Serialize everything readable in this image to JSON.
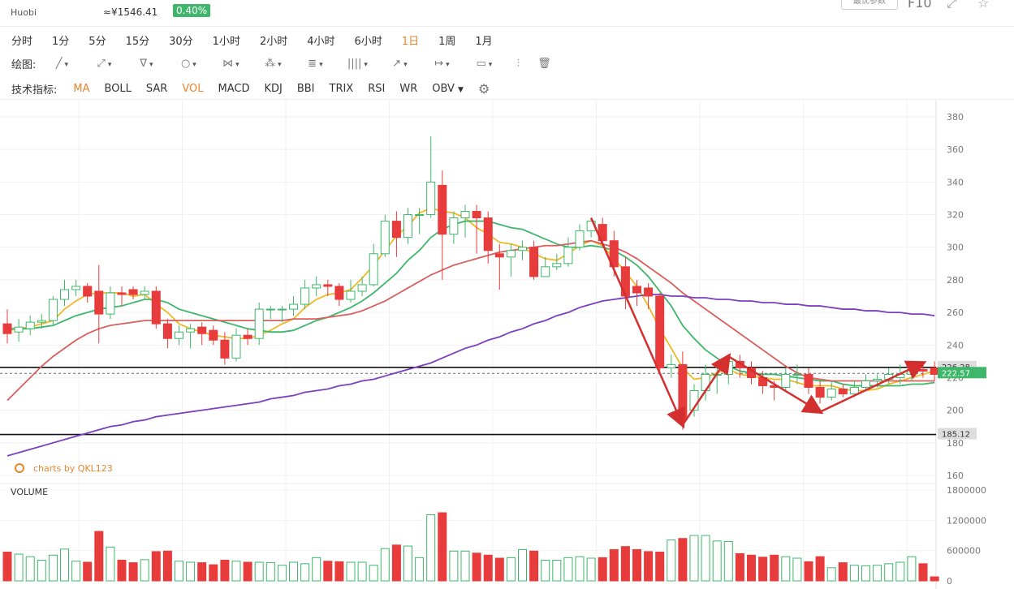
{
  "header": {
    "exchange": "Huobi",
    "price_cny": "≈¥1546.41",
    "change_pct": "0.40%",
    "config_button": "最优参数",
    "f10": "F10",
    "icons": [
      "fullscreen-icon",
      "star-icon"
    ]
  },
  "timeframes": [
    "分时",
    "1分",
    "5分",
    "15分",
    "30分",
    "1小时",
    "2小时",
    "4小时",
    "6小时",
    "1日",
    "1周",
    "1月"
  ],
  "active_timeframe": "1日",
  "drawing": {
    "label": "绘图:",
    "tools": [
      {
        "name": "line-tool-icon",
        "glyph": "╱"
      },
      {
        "name": "ray-tool-icon",
        "glyph": "⤢"
      },
      {
        "name": "channel-tool-icon",
        "glyph": "∇"
      },
      {
        "name": "circle-tool-icon",
        "glyph": "○"
      },
      {
        "name": "wave-tool-icon",
        "glyph": "⋈"
      },
      {
        "name": "pattern-tool-icon",
        "glyph": "⁂"
      },
      {
        "name": "fib-tool-icon",
        "glyph": "≣"
      },
      {
        "name": "gann-tool-icon",
        "glyph": "||||"
      },
      {
        "name": "arrow-tool-icon",
        "glyph": "↗"
      },
      {
        "name": "measure-tool-icon",
        "glyph": "↦"
      },
      {
        "name": "text-tool-icon",
        "glyph": "▭"
      }
    ],
    "end_icons": [
      {
        "name": "indicator-tool-icon",
        "glyph": "⫶"
      },
      {
        "name": "trash-icon",
        "glyph": "🗑"
      }
    ]
  },
  "indicators": {
    "label": "技术指标:",
    "items": [
      "MA",
      "BOLL",
      "SAR",
      "VOL",
      "MACD",
      "KDJ",
      "BBI",
      "TRIX",
      "RSI",
      "WR",
      "OBV"
    ],
    "active": [
      "MA",
      "VOL"
    ]
  },
  "chart_data": {
    "type": "candlestick",
    "watermark": "charts by QKL123",
    "volume_label": "VOLUME",
    "price_axis": {
      "min": 160,
      "max": 380,
      "ticks": [
        160,
        180,
        200,
        220,
        240,
        260,
        280,
        300,
        320,
        340,
        360,
        380
      ]
    },
    "volume_axis": {
      "min": 0,
      "max": 1800000,
      "ticks": [
        0,
        600000,
        1200000,
        1800000
      ]
    },
    "horizontal_lines": [
      226.28,
      185.12
    ],
    "price_badges": [
      {
        "value": "226.28",
        "color": "#dddddd"
      },
      {
        "value": "185.12",
        "color": "#dddddd"
      },
      {
        "value": "222.57",
        "color": "#3fb76b"
      }
    ],
    "candles": [
      [
        253,
        247,
        262,
        241,
        0.57
      ],
      [
        248,
        251,
        256,
        242,
        0.53
      ],
      [
        250,
        254,
        258,
        246,
        0.48
      ],
      [
        254,
        255,
        259,
        250,
        0.41
      ],
      [
        255,
        268,
        270,
        252,
        0.51
      ],
      [
        268,
        274,
        280,
        264,
        0.63
      ],
      [
        274,
        276,
        280,
        270,
        0.39
      ],
      [
        276,
        270,
        278,
        266,
        0.37
      ],
      [
        273,
        259,
        289,
        241,
        0.98
      ],
      [
        259,
        272,
        276,
        256,
        0.67
      ],
      [
        272,
        271,
        276,
        264,
        0.41
      ],
      [
        274,
        271,
        276,
        268,
        0.36
      ],
      [
        271,
        273,
        276,
        268,
        0.42
      ],
      [
        273,
        253,
        276,
        250,
        0.58
      ],
      [
        253,
        244,
        256,
        238,
        0.59
      ],
      [
        244,
        248,
        252,
        240,
        0.39
      ],
      [
        248,
        250,
        253,
        238,
        0.37
      ],
      [
        251,
        247,
        254,
        240,
        0.36
      ],
      [
        249,
        243,
        252,
        240,
        0.32
      ],
      [
        243,
        232,
        248,
        228,
        0.41
      ],
      [
        232,
        246,
        250,
        230,
        0.39
      ],
      [
        246,
        244,
        250,
        240,
        0.37
      ],
      [
        244,
        262,
        266,
        240,
        0.37
      ],
      [
        262,
        262,
        264,
        256,
        0.36
      ],
      [
        262,
        262,
        264,
        254,
        0.31
      ],
      [
        262,
        265,
        270,
        258,
        0.37
      ],
      [
        265,
        275,
        280,
        262,
        0.34
      ],
      [
        275,
        277,
        282,
        270,
        0.46
      ],
      [
        277,
        276,
        280,
        270,
        0.39
      ],
      [
        276,
        268,
        278,
        264,
        0.38
      ],
      [
        268,
        273,
        280,
        266,
        0.37
      ],
      [
        273,
        277,
        282,
        270,
        0.37
      ],
      [
        277,
        296,
        302,
        276,
        0.31
      ],
      [
        296,
        316,
        320,
        294,
        0.64
      ],
      [
        316,
        306,
        322,
        294,
        0.71
      ],
      [
        306,
        320,
        324,
        302,
        0.69
      ],
      [
        320,
        320,
        324,
        308,
        0.46
      ],
      [
        320,
        340,
        368,
        318,
        1.31
      ],
      [
        338,
        308,
        347,
        280,
        1.35
      ],
      [
        308,
        318,
        322,
        302,
        0.59
      ],
      [
        318,
        322,
        326,
        306,
        0.59
      ],
      [
        322,
        318,
        326,
        296,
        0.55
      ],
      [
        318,
        298,
        322,
        290,
        0.51
      ],
      [
        296,
        294,
        302,
        274,
        0.45
      ],
      [
        294,
        298,
        302,
        282,
        0.46
      ],
      [
        298,
        300,
        304,
        292,
        0.62
      ],
      [
        300,
        282,
        304,
        280,
        0.59
      ],
      [
        282,
        288,
        294,
        282,
        0.41
      ],
      [
        288,
        290,
        296,
        286,
        0.41
      ],
      [
        290,
        300,
        306,
        288,
        0.46
      ],
      [
        300,
        310,
        314,
        298,
        0.48
      ],
      [
        310,
        316,
        318,
        306,
        0.45
      ],
      [
        314,
        304,
        318,
        302,
        0.46
      ],
      [
        304,
        288,
        310,
        282,
        0.62
      ],
      [
        288,
        270,
        294,
        262,
        0.68
      ],
      [
        276,
        272,
        280,
        264,
        0.62
      ],
      [
        275,
        270,
        278,
        262,
        0.58
      ],
      [
        270,
        226,
        272,
        224,
        0.57
      ],
      [
        226,
        228,
        234,
        220,
        0.81
      ],
      [
        228,
        194,
        236,
        188,
        0.84
      ],
      [
        200,
        212,
        216,
        196,
        0.9
      ],
      [
        212,
        222,
        228,
        206,
        0.9
      ],
      [
        222,
        222,
        228,
        210,
        0.79
      ],
      [
        222,
        230,
        232,
        216,
        0.78
      ],
      [
        230,
        226,
        234,
        220,
        0.54
      ],
      [
        226,
        220,
        230,
        216,
        0.51
      ],
      [
        220,
        215,
        224,
        210,
        0.47
      ],
      [
        215,
        214,
        218,
        206,
        0.51
      ],
      [
        214,
        222,
        226,
        212,
        0.48
      ],
      [
        222,
        222,
        228,
        216,
        0.45
      ],
      [
        222,
        214,
        226,
        210,
        0.38
      ],
      [
        214,
        208,
        218,
        204,
        0.48
      ],
      [
        208,
        213,
        218,
        206,
        0.26
      ],
      [
        213,
        210,
        216,
        208,
        0.36
      ],
      [
        210,
        214,
        218,
        208,
        0.31
      ],
      [
        214,
        218,
        222,
        212,
        0.3
      ],
      [
        218,
        219,
        222,
        214,
        0.31
      ],
      [
        219,
        222,
        226,
        216,
        0.34
      ],
      [
        220,
        222,
        228,
        216,
        0.37
      ],
      [
        222,
        225,
        228,
        218,
        0.48
      ],
      [
        225,
        224,
        228,
        220,
        0.34
      ],
      [
        226,
        222,
        230,
        218,
        0.08
      ]
    ],
    "ma_lines": [
      {
        "period": 5,
        "color": "#f2b823",
        "values": [
          249,
          250,
          251,
          253,
          255,
          262,
          267,
          271,
          272,
          272,
          272,
          270,
          271,
          265,
          260,
          253,
          250,
          248,
          246,
          245,
          244,
          244,
          246,
          249,
          253,
          256,
          263,
          268,
          271,
          272,
          274,
          281,
          289,
          298,
          307,
          313,
          321,
          324,
          322,
          321,
          318,
          312,
          308,
          303,
          302,
          300,
          296,
          293,
          292,
          296,
          301,
          304,
          301,
          293,
          285,
          276,
          264,
          250,
          238,
          226,
          219,
          220,
          223,
          225,
          222,
          221,
          220,
          219,
          219,
          217,
          215,
          215,
          215,
          213,
          212,
          212,
          213,
          216,
          218,
          220,
          222,
          224
        ]
      },
      {
        "period": 10,
        "color": "#3fb76b",
        "values": [
          250,
          250,
          250,
          251,
          252,
          255,
          258,
          260,
          262,
          263,
          264,
          266,
          268,
          268,
          266,
          262,
          260,
          258,
          256,
          254,
          252,
          250,
          249,
          248,
          248,
          249,
          252,
          255,
          257,
          260,
          263,
          267,
          272,
          278,
          284,
          292,
          298,
          306,
          311,
          314,
          316,
          316,
          316,
          314,
          312,
          311,
          308,
          305,
          302,
          300,
          300,
          301,
          300,
          298,
          294,
          289,
          282,
          273,
          264,
          252,
          244,
          237,
          232,
          227,
          224,
          223,
          222,
          222,
          221,
          220,
          219,
          218,
          218,
          216,
          215,
          215,
          215,
          215,
          215,
          216,
          216,
          217
        ]
      },
      {
        "period": 30,
        "color": "#d95e5e",
        "values": [
          206,
          213,
          220,
          227,
          233,
          238,
          243,
          247,
          250,
          252,
          253,
          254,
          255,
          255,
          255,
          255,
          255,
          255,
          255,
          255,
          255,
          255,
          255,
          255,
          255,
          256,
          256,
          256,
          257,
          258,
          259,
          261,
          264,
          267,
          271,
          275,
          279,
          283,
          286,
          289,
          291,
          293,
          295,
          297,
          298,
          299,
          300,
          301,
          301,
          302,
          303,
          304,
          302,
          300,
          297,
          293,
          288,
          283,
          278,
          272,
          267,
          262,
          257,
          252,
          247,
          242,
          237,
          232,
          227,
          223,
          220,
          219,
          218,
          218,
          218,
          218,
          218,
          218,
          218,
          218,
          218,
          218
        ]
      },
      {
        "period": 60,
        "color": "#7b3fbf",
        "values": [
          172,
          174,
          176,
          178,
          180,
          182,
          184,
          186,
          188,
          190,
          191,
          193,
          194,
          196,
          197,
          198,
          199,
          200,
          201,
          202,
          203,
          204,
          205,
          207,
          208,
          209,
          211,
          212,
          213,
          215,
          216,
          218,
          219,
          221,
          223,
          225,
          227,
          229,
          232,
          235,
          238,
          240,
          243,
          245,
          248,
          250,
          253,
          255,
          258,
          260,
          263,
          265,
          267,
          268,
          269,
          270,
          271,
          271,
          270,
          270,
          269,
          269,
          268,
          268,
          267,
          267,
          266,
          266,
          265,
          265,
          264,
          264,
          263,
          262,
          262,
          261,
          261,
          260,
          260,
          259,
          259,
          258
        ]
      }
    ],
    "annotations": [
      {
        "type": "arrow",
        "color": "#d32f2f",
        "from": [
          51,
          318
        ],
        "to": [
          59,
          191
        ]
      },
      {
        "type": "arrow",
        "color": "#d32f2f",
        "from": [
          59,
          191
        ],
        "to": [
          63,
          233
        ]
      },
      {
        "type": "arrow",
        "color": "#d32f2f",
        "from": [
          63,
          233
        ],
        "to": [
          71,
          199
        ]
      },
      {
        "type": "arrow",
        "color": "#d32f2f",
        "from": [
          71,
          199
        ],
        "to": [
          80,
          229
        ]
      }
    ]
  }
}
